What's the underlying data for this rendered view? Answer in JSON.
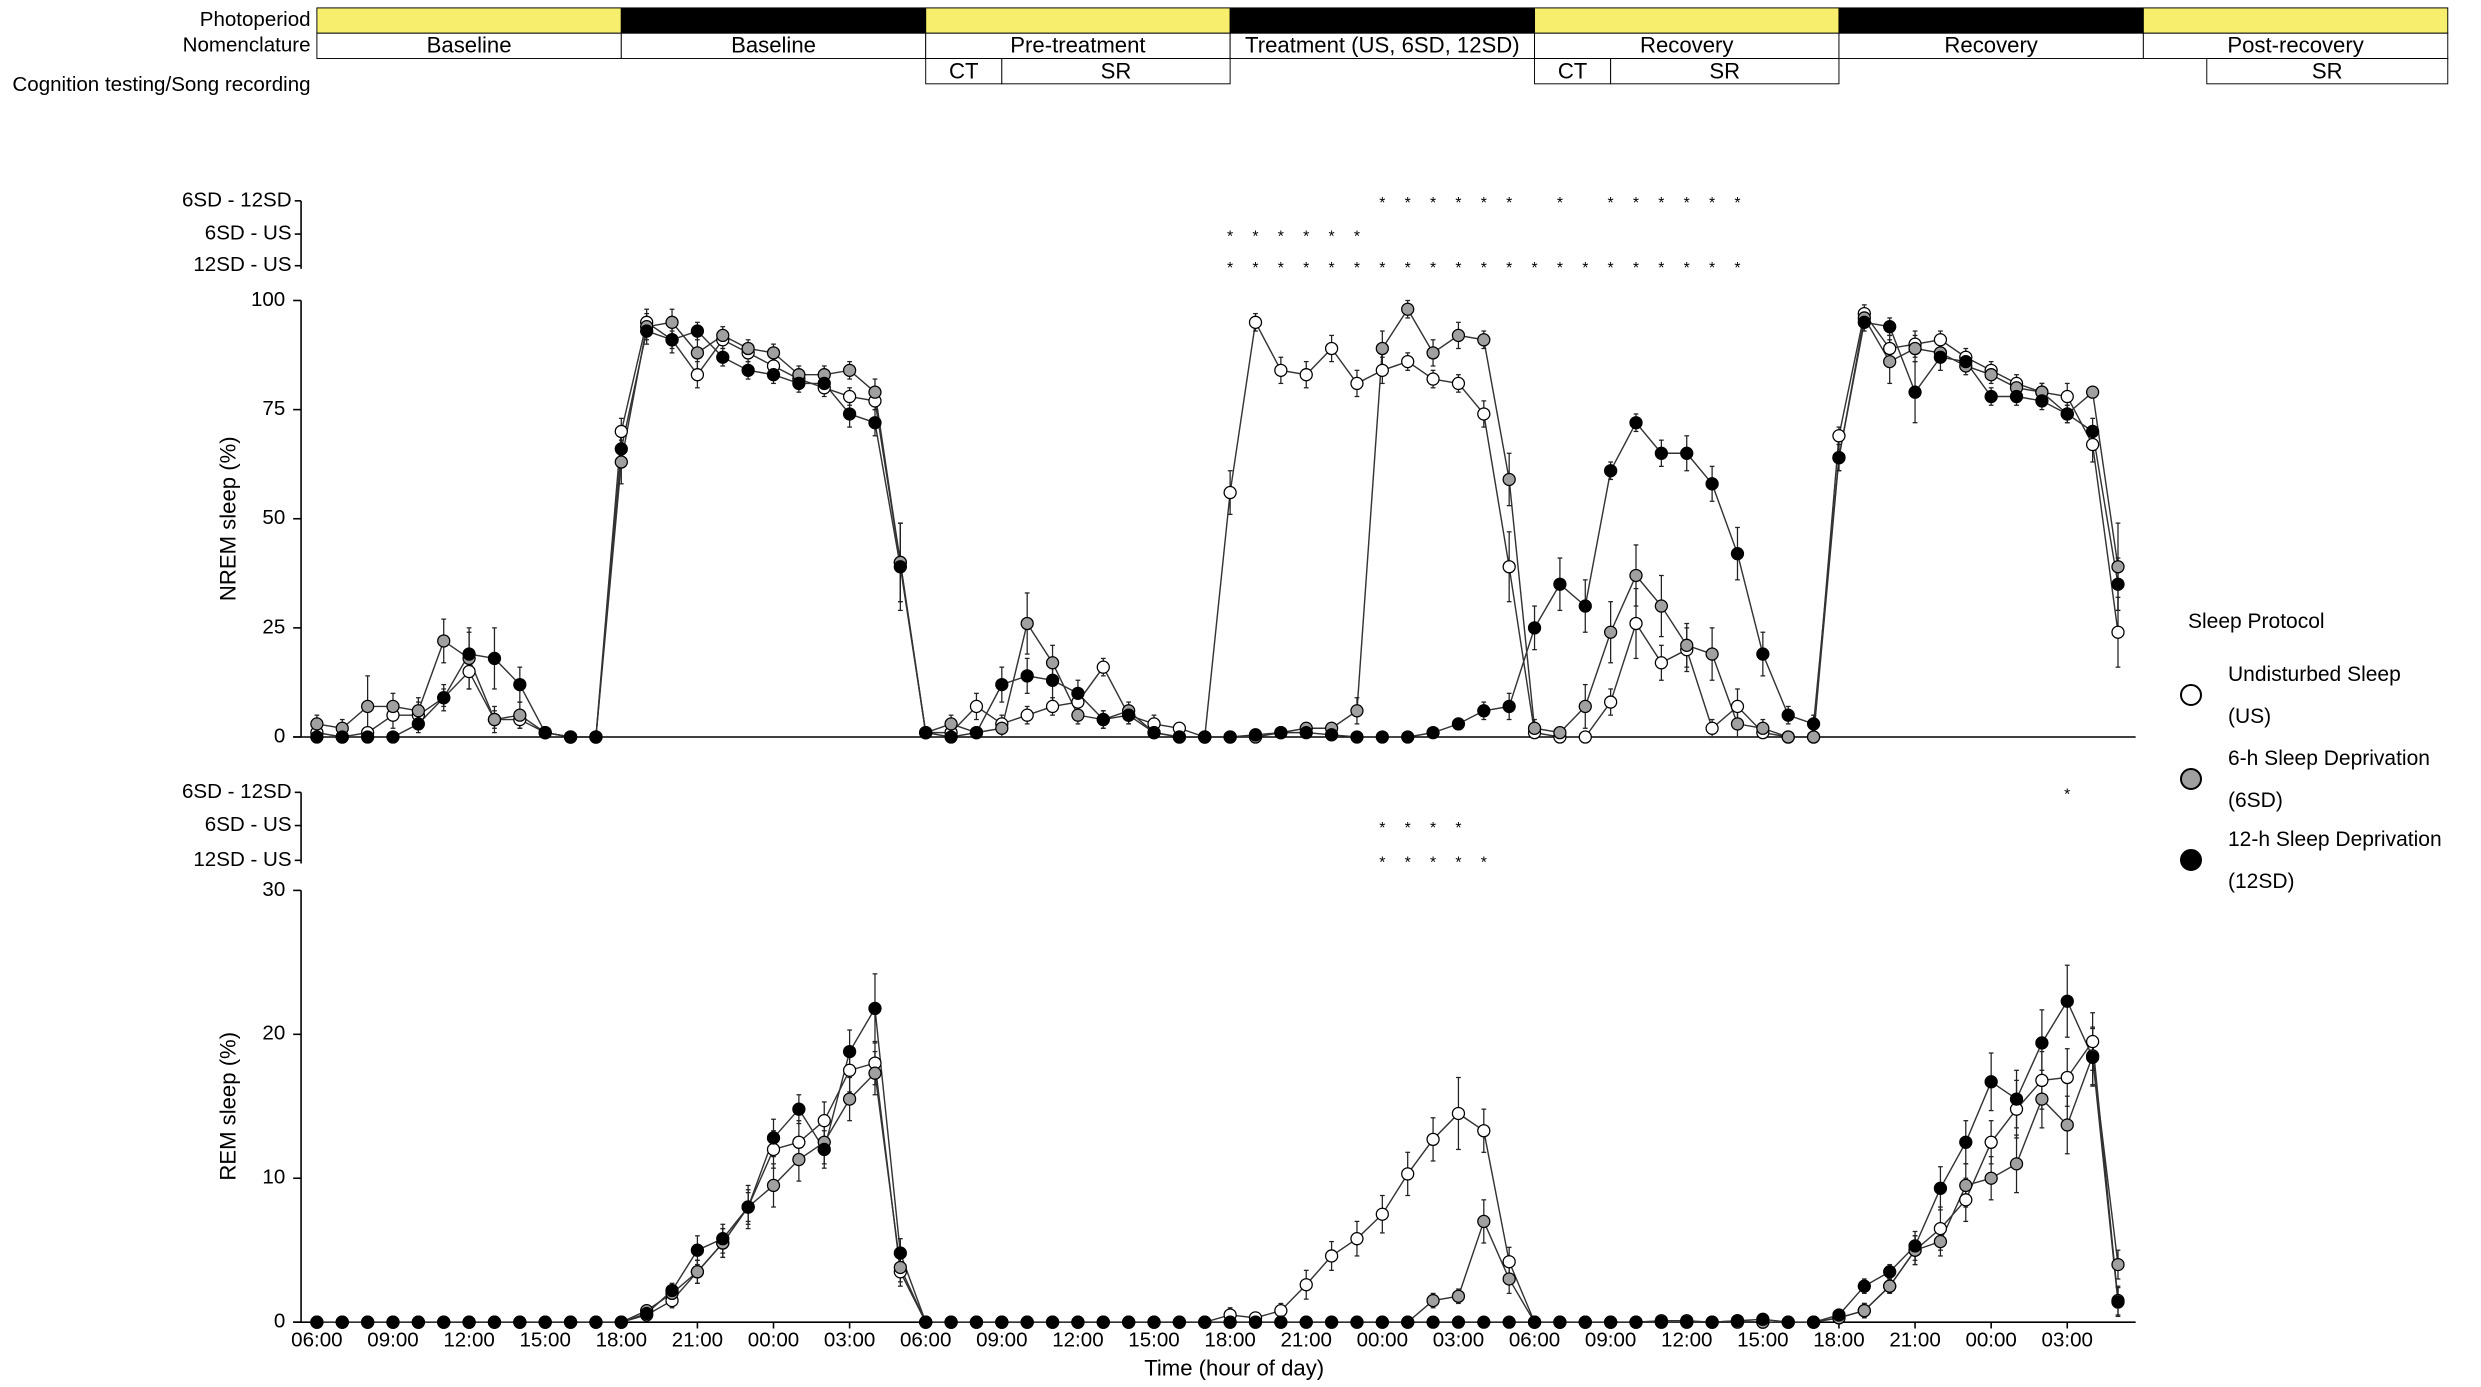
{
  "protocol": {
    "row_labels": [
      "Photoperiod",
      "Nomenclature",
      "Cognition testing/Song recording"
    ],
    "photoperiod": [
      {
        "start": 0,
        "end": 12,
        "color": "#f6ee6c"
      },
      {
        "start": 12,
        "end": 24,
        "color": "#000000"
      },
      {
        "start": 24,
        "end": 36,
        "color": "#f6ee6c"
      },
      {
        "start": 36,
        "end": 48,
        "color": "#000000"
      },
      {
        "start": 48,
        "end": 60,
        "color": "#f6ee6c"
      },
      {
        "start": 60,
        "end": 72,
        "color": "#000000"
      },
      {
        "start": 72,
        "end": 84,
        "color": "#f6ee6c"
      }
    ],
    "nomenclature": [
      {
        "label": "Baseline",
        "start": 0,
        "end": 12
      },
      {
        "label": "Baseline",
        "start": 12,
        "end": 24
      },
      {
        "label": "Pre-treatment",
        "start": 24,
        "end": 36
      },
      {
        "label": "Treatment (US, 6SD, 12SD)",
        "start": 36,
        "end": 48
      },
      {
        "label": "Recovery",
        "start": 48,
        "end": 60
      },
      {
        "label": "Recovery",
        "start": 60,
        "end": 72
      },
      {
        "label": "Post-recovery",
        "start": 72,
        "end": 84
      }
    ],
    "testing": [
      {
        "label": "CT",
        "start": 24,
        "end": 27
      },
      {
        "label": "SR",
        "start": 27,
        "end": 36
      },
      {
        "label": "CT",
        "start": 48,
        "end": 51
      },
      {
        "label": "SR",
        "start": 51,
        "end": 60
      },
      {
        "label": "SR",
        "start": 74.5,
        "end": 84
      }
    ]
  },
  "chart_data": [
    {
      "type": "line",
      "ylabel": "NREM sleep (%)",
      "ylim": [
        0,
        100
      ],
      "yticks": [
        0,
        25,
        50,
        75,
        100
      ],
      "legend_title": "Sleep Protocol",
      "symbol": "*",
      "significance": [
        {
          "label": "6SD - 12SD",
          "points": [
            42,
            43,
            44,
            45,
            46,
            47,
            49,
            51,
            52,
            53,
            54,
            55,
            56
          ]
        },
        {
          "label": "6SD - US",
          "points": [
            36,
            37,
            38,
            39,
            40,
            41
          ]
        },
        {
          "label": "12SD - US",
          "points": [
            36,
            37,
            38,
            39,
            40,
            41,
            42,
            43,
            44,
            45,
            46,
            47,
            48,
            49,
            50,
            51,
            52,
            53,
            54,
            55,
            56
          ]
        }
      ],
      "series": [
        {
          "name": "Undisturbed Sleep (US)",
          "color": "#ffffff",
          "values": [
            1,
            0,
            1,
            5,
            5,
            9,
            15,
            4,
            4,
            1,
            0,
            0,
            70,
            95,
            91,
            83,
            91,
            88,
            85,
            82,
            80,
            78,
            77,
            40,
            1,
            1,
            7,
            3,
            5,
            7,
            8,
            16,
            5,
            3,
            2,
            0,
            56,
            95,
            84,
            83,
            89,
            81,
            84,
            86,
            82,
            81,
            74,
            39,
            1,
            0,
            0,
            8,
            26,
            17,
            20,
            2,
            7,
            1,
            0,
            0,
            69,
            97,
            89,
            90,
            91,
            87,
            84,
            81,
            79,
            78,
            67,
            24
          ],
          "errors": [
            1,
            1,
            1,
            3,
            3,
            2,
            4,
            2,
            2,
            1,
            0,
            0,
            3,
            3,
            3,
            3,
            2,
            2,
            2,
            2,
            2,
            2,
            2,
            9,
            1,
            1,
            3,
            2,
            2,
            2,
            3,
            2,
            2,
            2,
            1,
            0,
            5,
            2,
            3,
            3,
            3,
            3,
            3,
            2,
            2,
            2,
            3,
            8,
            1,
            0,
            0,
            3,
            8,
            4,
            5,
            2,
            4,
            1,
            0,
            0,
            2,
            2,
            3,
            3,
            2,
            2,
            2,
            2,
            2,
            3,
            4,
            8
          ]
        },
        {
          "name": "6-h Sleep Deprivation (6SD)",
          "color": "#a0a0a0",
          "values": [
            3,
            2,
            7,
            7,
            6,
            22,
            18,
            4,
            5,
            1,
            0,
            0,
            63,
            94,
            95,
            88,
            92,
            89,
            88,
            83,
            83,
            84,
            79,
            40,
            1,
            3,
            1,
            2,
            26,
            17,
            5,
            4,
            6,
            1,
            0,
            0,
            0,
            0,
            1,
            2,
            2,
            6,
            89,
            98,
            88,
            92,
            91,
            59,
            2,
            1,
            7,
            24,
            37,
            30,
            21,
            19,
            3,
            2,
            0,
            0,
            64,
            96,
            86,
            89,
            88,
            85,
            83,
            80,
            79,
            74,
            79,
            39
          ],
          "errors": [
            2,
            2,
            7,
            3,
            3,
            5,
            7,
            3,
            3,
            1,
            0,
            0,
            5,
            3,
            3,
            5,
            2,
            2,
            2,
            2,
            2,
            2,
            3,
            9,
            1,
            2,
            1,
            2,
            7,
            4,
            2,
            2,
            2,
            1,
            0,
            0,
            0,
            0,
            1,
            1,
            1,
            3,
            4,
            2,
            3,
            3,
            2,
            6,
            2,
            1,
            5,
            7,
            7,
            7,
            5,
            6,
            3,
            2,
            0,
            0,
            3,
            2,
            5,
            3,
            2,
            2,
            2,
            2,
            2,
            2,
            1,
            10
          ]
        },
        {
          "name": "12-h Sleep Deprivation (12SD)",
          "color": "#000000",
          "values": [
            0,
            0,
            0,
            0,
            3,
            9,
            19,
            18,
            12,
            1,
            0,
            0,
            66,
            93,
            91,
            93,
            87,
            84,
            83,
            81,
            81,
            74,
            72,
            39,
            1,
            0,
            1,
            12,
            14,
            13,
            10,
            4,
            5,
            1,
            0,
            0,
            0,
            0.5,
            1,
            1,
            0.5,
            0,
            0,
            0,
            1,
            3,
            6,
            7,
            25,
            35,
            30,
            61,
            72,
            65,
            65,
            58,
            42,
            19,
            5,
            3,
            64,
            95,
            94,
            79,
            87,
            86,
            78,
            78,
            77,
            74,
            70,
            35
          ],
          "errors": [
            0,
            0,
            0,
            0,
            2,
            3,
            5,
            7,
            4,
            1,
            0,
            0,
            4,
            3,
            2,
            2,
            2,
            2,
            2,
            2,
            2,
            3,
            3,
            10,
            1,
            0,
            1,
            4,
            4,
            5,
            3,
            2,
            2,
            1,
            0,
            0,
            0,
            1,
            1,
            1,
            1,
            0,
            0,
            0,
            1,
            1,
            2,
            3,
            5,
            6,
            6,
            2,
            2,
            3,
            4,
            4,
            6,
            5,
            2,
            2,
            3,
            2,
            2,
            7,
            3,
            2,
            2,
            2,
            2,
            2,
            3,
            6
          ]
        }
      ]
    },
    {
      "type": "line",
      "ylabel": "REM sleep (%)",
      "xlabel": "Time (hour of day)",
      "ylim": [
        0,
        30
      ],
      "yticks": [
        0,
        10,
        20,
        30
      ],
      "symbol": "*",
      "categories": [
        "06:00",
        null,
        null,
        "09:00",
        null,
        null,
        "12:00",
        null,
        null,
        "15:00",
        null,
        null,
        "18:00",
        null,
        null,
        "21:00",
        null,
        null,
        "00:00",
        null,
        null,
        "03:00",
        null,
        null,
        "06:00",
        null,
        null,
        "09:00",
        null,
        null,
        "12:00",
        null,
        null,
        "15:00",
        null,
        null,
        "18:00",
        null,
        null,
        "21:00",
        null,
        null,
        "00:00",
        null,
        null,
        "03:00",
        null,
        null,
        "06:00",
        null,
        null,
        "09:00",
        null,
        null,
        "12:00",
        null,
        null,
        "15:00",
        null,
        null,
        "18:00",
        null,
        null,
        "21:00",
        null,
        null,
        "00:00",
        null,
        null,
        "03:00",
        null,
        null
      ],
      "significance": [
        {
          "label": "6SD - 12SD",
          "points": [
            69
          ]
        },
        {
          "label": "6SD - US",
          "points": [
            42,
            43,
            44,
            45
          ]
        },
        {
          "label": "12SD - US",
          "points": [
            42,
            43,
            44,
            45,
            46
          ]
        }
      ],
      "series": [
        {
          "color": "#ffffff",
          "values": [
            0,
            0,
            0,
            0,
            0,
            0,
            0,
            0,
            0,
            0,
            0,
            0,
            0,
            0.5,
            1.5,
            3.5,
            5.5,
            8,
            12,
            12.5,
            14,
            17.5,
            18,
            3.5,
            0,
            0,
            0,
            0,
            0,
            0,
            0,
            0,
            0,
            0,
            0,
            0,
            0.5,
            0.3,
            0.8,
            2.6,
            4.6,
            5.8,
            7.5,
            10.3,
            12.7,
            14.5,
            13.3,
            4.2,
            0,
            0,
            0,
            0,
            0,
            0.1,
            0.1,
            0,
            0.1,
            0,
            0,
            0,
            0.3,
            0.8,
            2.5,
            5,
            6.5,
            8.5,
            12.5,
            14.8,
            16.8,
            17,
            19.5,
            1.5
          ],
          "errors": [
            0,
            0,
            0,
            0,
            0,
            0,
            0,
            0,
            0,
            0,
            0,
            0,
            0,
            0.3,
            0.5,
            0.8,
            1,
            1,
            1.3,
            1.5,
            1.3,
            1.5,
            1.5,
            1,
            0,
            0,
            0,
            0,
            0,
            0,
            0,
            0,
            0,
            0,
            0,
            0,
            0.5,
            0.3,
            0.5,
            1,
            1,
            1.2,
            1.3,
            1.5,
            1.5,
            2.5,
            1.5,
            1,
            0,
            0,
            0,
            0,
            0,
            0,
            0,
            0,
            0,
            0,
            0,
            0,
            0.3,
            0.5,
            0.5,
            1,
            1.5,
            1.5,
            1.5,
            2,
            2,
            2,
            2,
            1
          ]
        },
        {
          "color": "#a0a0a0",
          "values": [
            0,
            0,
            0,
            0,
            0,
            0,
            0,
            0,
            0,
            0,
            0,
            0,
            0,
            0.8,
            2,
            3.5,
            5.5,
            8,
            9.5,
            11.3,
            12.5,
            15.5,
            17.3,
            3.8,
            0,
            0,
            0,
            0,
            0,
            0,
            0,
            0,
            0,
            0,
            0,
            0,
            0,
            0,
            0,
            0,
            0,
            0,
            0,
            0,
            1.5,
            1.8,
            7,
            3,
            0,
            0,
            0,
            0,
            0,
            0,
            0,
            0,
            0,
            0,
            0,
            0,
            0.3,
            0.8,
            2.5,
            5,
            5.6,
            9.5,
            10,
            11,
            15.5,
            13.7,
            18.5,
            4
          ],
          "errors": [
            0,
            0,
            0,
            0,
            0,
            0,
            0,
            0,
            0,
            0,
            0,
            0,
            0,
            0.3,
            0.5,
            0.8,
            1,
            1.5,
            1.5,
            1.5,
            1.5,
            1.5,
            1.5,
            1,
            0,
            0,
            0,
            0,
            0,
            0,
            0,
            0,
            0,
            0,
            0,
            0,
            0,
            0,
            0,
            0,
            0,
            0,
            0,
            0,
            0.5,
            0.5,
            1.5,
            1,
            0,
            0,
            0,
            0,
            0,
            0,
            0,
            0,
            0,
            0,
            0,
            0,
            0.3,
            0.5,
            0.5,
            1,
            1,
            1.5,
            1.5,
            2,
            2,
            2,
            2,
            1
          ]
        },
        {
          "color": "#000000",
          "values": [
            0,
            0,
            0,
            0,
            0,
            0,
            0,
            0,
            0,
            0,
            0,
            0,
            0,
            0.6,
            2.2,
            5,
            5.8,
            8,
            12.8,
            14.8,
            12,
            18.8,
            21.8,
            4.8,
            0,
            0,
            0,
            0,
            0,
            0,
            0,
            0,
            0,
            0,
            0,
            0,
            0,
            0,
            0,
            0,
            0,
            0,
            0,
            0,
            0,
            0,
            0,
            0,
            0,
            0,
            0,
            0,
            0,
            0,
            0,
            0,
            0.1,
            0.2,
            0,
            0,
            0.5,
            2.5,
            3.5,
            5.3,
            9.3,
            12.5,
            16.7,
            15.5,
            19.4,
            22.3,
            18.4,
            1.4
          ],
          "errors": [
            0,
            0,
            0,
            0,
            0,
            0,
            0,
            0,
            0,
            0,
            0,
            0,
            0,
            0.3,
            0.5,
            1,
            1,
            1.2,
            1.3,
            1,
            1.3,
            1.5,
            2.4,
            1,
            0,
            0,
            0,
            0,
            0,
            0,
            0,
            0,
            0,
            0,
            0,
            0,
            0,
            0,
            0,
            0,
            0,
            0,
            0,
            0,
            0,
            0,
            0,
            0,
            0,
            0,
            0,
            0,
            0,
            0,
            0,
            0,
            0,
            0,
            0,
            0,
            0.3,
            0.5,
            0.5,
            1,
            1.5,
            1.5,
            2,
            2,
            2.3,
            2.5,
            2,
            1
          ]
        }
      ]
    }
  ]
}
